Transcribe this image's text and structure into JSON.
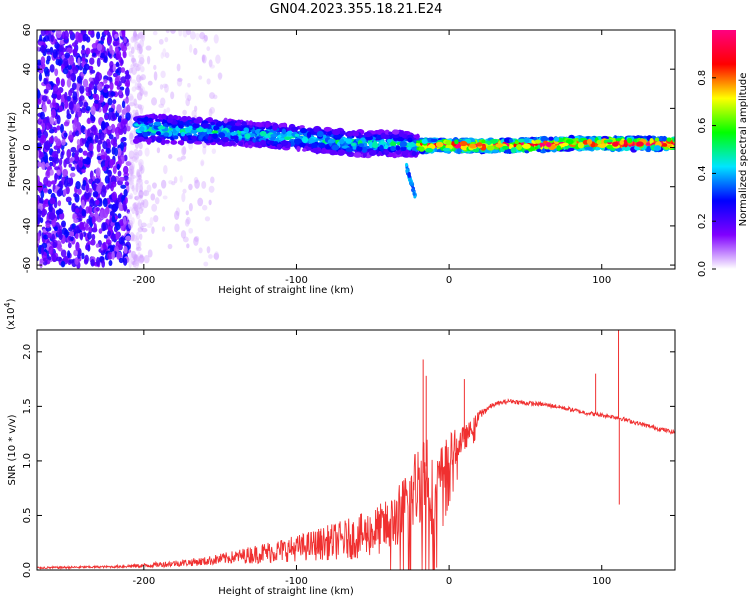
{
  "figure": {
    "title": "GN04.2023.355.18.21.E24"
  },
  "chart_data": [
    {
      "type": "heatmap",
      "xlabel": "Height of straight line (km)",
      "ylabel": "Frequency (Hz)",
      "xlim": [
        -270,
        148
      ],
      "ylim": [
        -62,
        60
      ],
      "x_ticks": [
        -200,
        -100,
        0,
        100
      ],
      "x_tick_labels": [
        "-200",
        "-100",
        "0",
        "100"
      ],
      "y_ticks": [
        60,
        40,
        20,
        0,
        -20,
        -40,
        -60
      ],
      "y_tick_labels": [
        "60",
        "40",
        "20",
        "0",
        "-20",
        "-40",
        "-60"
      ],
      "colorbar": {
        "label": "Normalized spectral amplitude",
        "range": [
          0,
          1
        ],
        "ticks": [
          0.0,
          0.2,
          0.4,
          0.6,
          0.8
        ],
        "tick_labels": [
          "0.0",
          "0.2",
          "0.4",
          "0.6",
          "0.8"
        ],
        "colormap": [
          "#ffffff",
          "#8000ff",
          "#0000ff",
          "#00e5ff",
          "#00ff00",
          "#ffff00",
          "#ff0000",
          "#ff0080"
        ]
      },
      "features": [
        {
          "kind": "scattered_low_amplitude",
          "x_range": [
            -270,
            -150
          ],
          "y_range": [
            -60,
            60
          ],
          "amplitude": 0.08
        },
        {
          "kind": "band",
          "x": [
            -205,
            -150,
            -100,
            -60,
            -30,
            -20
          ],
          "y_center": [
            10,
            8,
            5,
            2,
            2,
            1
          ],
          "y_halfwidth": [
            7,
            6,
            6,
            6,
            6,
            5
          ],
          "amplitude": 0.45
        },
        {
          "kind": "tail",
          "x": [
            -28,
            -22
          ],
          "y": [
            -10,
            -25
          ],
          "amplitude": 0.3
        },
        {
          "kind": "band",
          "x": [
            -20,
            0,
            40,
            80,
            100,
            148
          ],
          "y_center": [
            1,
            1,
            1,
            2,
            2,
            2
          ],
          "y_halfwidth": [
            3,
            3,
            3,
            3,
            3,
            3
          ],
          "amplitude": 0.95
        }
      ]
    },
    {
      "type": "line",
      "xlabel": "Height of straight line (km)",
      "ylabel": "SNR (10 * v/v)",
      "y_exponent_label": "(x10",
      "y_exponent": "4",
      "y_exponent_close": ")",
      "xlim": [
        -270,
        148
      ],
      "ylim": [
        0,
        2.2
      ],
      "x_ticks": [
        -200,
        -100,
        0,
        100
      ],
      "x_tick_labels": [
        "-200",
        "-100",
        "0",
        "100"
      ],
      "y_ticks": [
        0.0,
        0.5,
        1.0,
        1.5,
        2.0
      ],
      "y_tick_labels": [
        "0.0",
        "0.5",
        "1.0",
        "1.5",
        "2.0"
      ],
      "series": [
        {
          "color": "#f03030",
          "x": [
            -270,
            -220,
            -200,
            -180,
            -160,
            -140,
            -120,
            -100,
            -80,
            -60,
            -40,
            -30,
            -20,
            -15,
            -10,
            -5,
            0,
            5,
            10,
            15,
            20,
            25,
            30,
            40,
            50,
            60,
            70,
            80,
            90,
            100,
            110,
            120,
            130,
            148
          ],
          "y": [
            0.02,
            0.03,
            0.04,
            0.06,
            0.08,
            0.12,
            0.16,
            0.2,
            0.25,
            0.3,
            0.4,
            0.55,
            0.8,
            0.95,
            0.6,
            0.9,
            1.05,
            1.15,
            1.2,
            1.3,
            1.42,
            1.48,
            1.52,
            1.55,
            1.53,
            1.52,
            1.5,
            1.47,
            1.44,
            1.42,
            1.4,
            1.36,
            1.32,
            1.26
          ],
          "noise": [
            0.01,
            0.01,
            0.02,
            0.03,
            0.04,
            0.06,
            0.1,
            0.12,
            0.16,
            0.2,
            0.25,
            0.3,
            0.4,
            0.45,
            0.35,
            0.25,
            0.2,
            0.15,
            0.12,
            0.08,
            0.05,
            0.03,
            0.02,
            0.02,
            0.02,
            0.02,
            0.02,
            0.02,
            0.02,
            0.02,
            0.02,
            0.02,
            0.02,
            0.02
          ],
          "spikes": [
            {
              "x": -17,
              "y": 1.93
            },
            {
              "x": -15,
              "y": 1.78
            },
            {
              "x": 10,
              "y": 1.75
            },
            {
              "x": 96,
              "y": 1.8
            },
            {
              "x": 111,
              "y": 2.2
            },
            {
              "x": 111.5,
              "y": 0.6
            }
          ]
        }
      ]
    }
  ]
}
